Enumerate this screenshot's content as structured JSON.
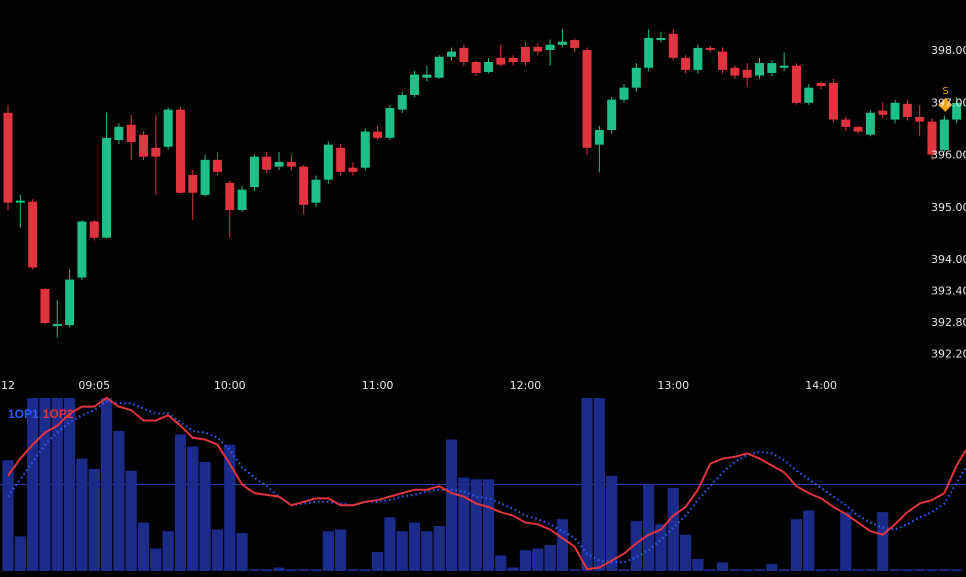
{
  "chart_data": [
    {
      "type": "candlestick",
      "title": "",
      "interval_minutes": 5,
      "colors": {
        "up": "#1fbf8a",
        "down": "#e0343f",
        "background": "#000000",
        "axis_text": "#e6e6e6"
      },
      "y_ticks": [
        "398.00",
        "397.00",
        "396.00",
        "395.00",
        "394.00",
        "393.40",
        "392.80",
        "392.20"
      ],
      "x_ticks": [
        {
          "index": 0,
          "label": "12"
        },
        {
          "index": 7,
          "label": "09:05"
        },
        {
          "index": 18,
          "label": "10:00"
        },
        {
          "index": 30,
          "label": "11:00"
        },
        {
          "index": 42,
          "label": "12:00"
        },
        {
          "index": 54,
          "label": "13:00"
        },
        {
          "index": 66,
          "label": "14:00"
        }
      ],
      "signal": {
        "index": 76,
        "label": "S",
        "price": 396.95,
        "color": "#f0a41c"
      },
      "ohlc": [
        [
          396.8,
          396.95,
          394.94,
          395.08
        ],
        [
          395.1,
          395.23,
          394.6,
          395.12
        ],
        [
          395.1,
          395.15,
          393.8,
          393.84
        ],
        [
          393.43,
          393.45,
          392.75,
          392.78
        ],
        [
          392.74,
          393.22,
          392.5,
          392.76
        ],
        [
          392.74,
          393.8,
          392.7,
          393.61
        ],
        [
          393.65,
          394.75,
          393.6,
          394.72
        ],
        [
          394.72,
          394.75,
          394.35,
          394.41
        ],
        [
          394.41,
          396.8,
          394.4,
          396.32
        ],
        [
          396.28,
          396.6,
          396.2,
          396.53
        ],
        [
          396.57,
          396.76,
          395.9,
          396.24
        ],
        [
          396.38,
          396.45,
          395.9,
          395.96
        ],
        [
          396.13,
          396.76,
          395.23,
          395.96
        ],
        [
          396.15,
          396.9,
          396.1,
          396.86
        ],
        [
          396.86,
          396.9,
          395.25,
          395.27
        ],
        [
          395.61,
          395.71,
          394.75,
          395.27
        ],
        [
          395.23,
          396.0,
          395.2,
          395.9
        ],
        [
          395.9,
          396.05,
          395.6,
          395.67
        ],
        [
          395.46,
          395.5,
          394.41,
          394.94
        ],
        [
          394.94,
          395.4,
          394.9,
          395.33
        ],
        [
          395.38,
          396.0,
          395.3,
          395.96
        ],
        [
          395.96,
          396.05,
          395.65,
          395.71
        ],
        [
          395.77,
          396.05,
          395.7,
          395.86
        ],
        [
          395.86,
          396.0,
          395.7,
          395.77
        ],
        [
          395.77,
          395.8,
          394.85,
          395.04
        ],
        [
          395.08,
          395.6,
          395.0,
          395.52
        ],
        [
          395.52,
          396.25,
          395.45,
          396.19
        ],
        [
          396.13,
          396.2,
          395.6,
          395.67
        ],
        [
          395.75,
          395.85,
          395.6,
          395.67
        ],
        [
          395.75,
          396.5,
          395.7,
          396.44
        ],
        [
          396.44,
          396.55,
          396.28,
          396.32
        ],
        [
          396.32,
          396.95,
          396.28,
          396.89
        ],
        [
          396.86,
          397.2,
          396.8,
          397.14
        ],
        [
          397.14,
          397.6,
          397.1,
          397.53
        ],
        [
          397.47,
          397.7,
          397.4,
          397.53
        ],
        [
          397.47,
          397.9,
          397.45,
          397.87
        ],
        [
          397.87,
          398.05,
          397.8,
          397.97
        ],
        [
          398.04,
          398.1,
          397.7,
          397.77
        ],
        [
          397.77,
          397.8,
          397.5,
          397.56
        ],
        [
          397.58,
          397.85,
          397.55,
          397.77
        ],
        [
          397.85,
          398.1,
          397.68,
          397.72
        ],
        [
          397.85,
          397.9,
          397.7,
          397.77
        ],
        [
          398.06,
          398.15,
          397.7,
          397.77
        ],
        [
          398.06,
          398.12,
          397.9,
          397.97
        ],
        [
          398.0,
          398.2,
          397.7,
          398.1
        ],
        [
          398.1,
          398.4,
          398.05,
          398.16
        ],
        [
          398.19,
          398.22,
          397.95,
          398.04
        ],
        [
          398.0,
          398.05,
          396.0,
          396.13
        ],
        [
          396.19,
          396.55,
          395.66,
          396.47
        ],
        [
          396.47,
          397.1,
          396.4,
          397.05
        ],
        [
          397.05,
          397.35,
          397.0,
          397.28
        ],
        [
          397.28,
          397.75,
          397.2,
          397.66
        ],
        [
          397.66,
          398.4,
          397.6,
          398.23
        ],
        [
          398.19,
          398.35,
          398.15,
          398.23
        ],
        [
          398.31,
          398.4,
          397.8,
          397.85
        ],
        [
          397.85,
          397.9,
          397.55,
          397.62
        ],
        [
          397.62,
          398.1,
          397.55,
          398.04
        ],
        [
          398.04,
          398.08,
          397.95,
          398.0
        ],
        [
          397.97,
          398.05,
          397.55,
          397.62
        ],
        [
          397.66,
          397.7,
          397.45,
          397.51
        ],
        [
          397.62,
          397.75,
          397.3,
          397.47
        ],
        [
          397.51,
          397.85,
          397.45,
          397.75
        ],
        [
          397.56,
          397.8,
          397.5,
          397.75
        ],
        [
          397.66,
          397.95,
          397.6,
          397.7
        ],
        [
          397.7,
          397.75,
          396.95,
          396.99
        ],
        [
          396.99,
          397.35,
          396.95,
          397.28
        ],
        [
          397.37,
          397.4,
          397.25,
          397.31
        ],
        [
          397.37,
          397.45,
          396.62,
          396.67
        ],
        [
          396.67,
          396.72,
          396.45,
          396.53
        ],
        [
          396.53,
          396.55,
          396.4,
          396.44
        ],
        [
          396.38,
          396.85,
          396.35,
          396.8
        ],
        [
          396.84,
          397.0,
          396.7,
          396.76
        ],
        [
          396.67,
          397.05,
          396.6,
          396.99
        ],
        [
          396.97,
          397.05,
          396.65,
          396.72
        ],
        [
          396.72,
          396.95,
          396.35,
          396.63
        ],
        [
          396.63,
          396.7,
          395.9,
          396.0
        ],
        [
          396.09,
          396.75,
          396.05,
          396.67
        ],
        [
          396.67,
          397.1,
          396.6,
          396.99
        ]
      ],
      "ylim": [
        392.2,
        398.0
      ]
    },
    {
      "type": "bar+line",
      "legend": [
        {
          "label": "1OP1",
          "color": "#2f5df5",
          "style": "dotted"
        },
        {
          "label": "1OP2",
          "color": "#e0343f",
          "style": "solid"
        }
      ],
      "ylim": [
        0,
        100
      ],
      "midline": 50,
      "bar_color": "#1a2b8a",
      "bars": [
        64,
        20,
        100,
        100,
        100,
        100,
        65,
        59,
        100,
        81,
        58,
        28,
        13,
        23,
        79,
        72,
        63,
        24,
        73,
        22,
        1,
        1,
        2,
        1,
        1,
        1,
        23,
        24,
        1,
        1,
        11,
        31,
        23,
        28,
        23,
        26,
        76,
        54,
        53,
        53,
        9,
        2,
        12,
        13,
        15,
        30,
        1,
        100,
        100,
        55,
        1,
        29,
        50,
        27,
        48,
        21,
        7,
        1,
        5,
        1,
        1,
        1,
        4,
        1,
        30,
        35,
        1,
        1,
        34,
        1,
        1,
        34,
        1,
        1,
        1,
        1,
        1,
        1
      ],
      "line_1OP2": [
        55,
        65,
        73,
        80,
        84,
        91,
        95,
        95,
        100,
        95,
        93,
        87,
        87,
        90,
        84,
        77,
        76,
        73,
        62,
        50,
        45,
        44,
        43,
        38,
        40,
        42,
        42,
        38,
        38,
        40,
        41,
        43,
        45,
        47,
        47,
        49,
        45,
        43,
        39,
        37,
        34,
        32,
        28,
        27,
        24,
        19,
        14,
        1,
        2,
        6,
        10,
        16,
        21,
        24,
        32,
        37,
        47,
        62,
        65,
        66,
        68,
        65,
        61,
        57,
        49,
        45,
        42,
        37,
        33,
        28,
        23,
        21,
        27,
        34,
        39,
        41,
        45,
        61
      ],
      "line_1OP1": [
        43,
        53,
        63,
        73,
        80,
        86,
        90,
        93,
        98,
        97,
        97,
        94,
        91,
        91,
        86,
        81,
        80,
        77,
        70,
        60,
        54,
        49,
        43,
        38,
        39,
        40,
        40,
        39,
        38,
        40,
        40,
        41,
        43,
        44,
        46,
        47,
        47,
        46,
        43,
        42,
        39,
        36,
        32,
        30,
        27,
        23,
        19,
        10,
        6,
        5,
        5,
        8,
        12,
        18,
        25,
        32,
        41,
        49,
        57,
        63,
        67,
        69,
        68,
        64,
        58,
        53,
        48,
        43,
        38,
        32,
        28,
        25,
        24,
        27,
        31,
        34,
        39,
        51
      ]
    }
  ]
}
